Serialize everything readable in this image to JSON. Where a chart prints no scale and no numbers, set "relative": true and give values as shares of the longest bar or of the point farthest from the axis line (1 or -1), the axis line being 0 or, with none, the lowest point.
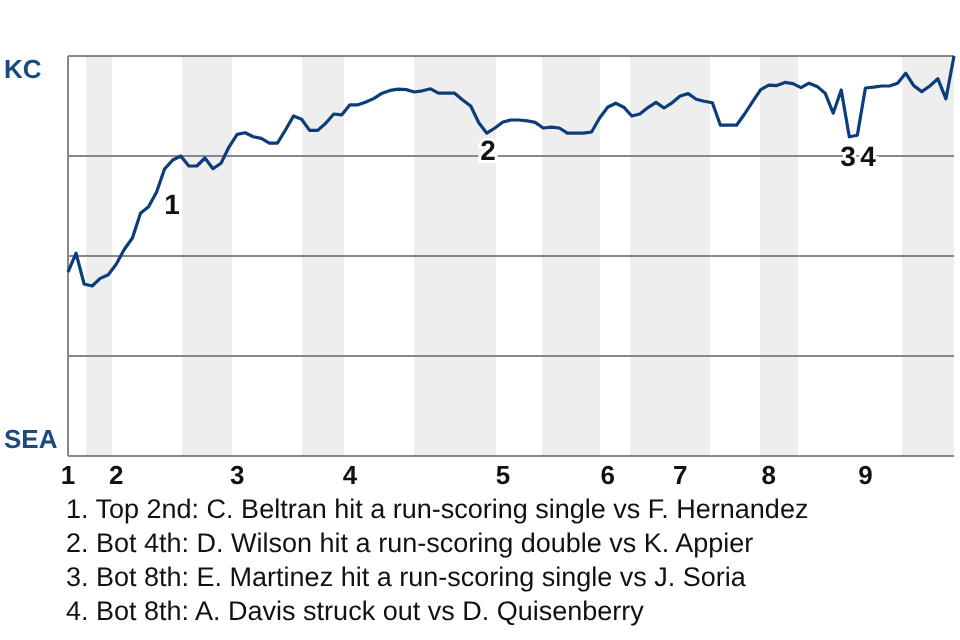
{
  "chart_data": {
    "type": "line",
    "relative": true,
    "categories": [
      "1",
      null,
      null,
      null,
      null,
      null,
      "2",
      null,
      null,
      null,
      null,
      null,
      null,
      null,
      null,
      null,
      null,
      null,
      null,
      null,
      null,
      "3",
      null,
      null,
      null,
      null,
      null,
      null,
      null,
      null,
      null,
      null,
      null,
      null,
      null,
      "4",
      null,
      null,
      null,
      null,
      null,
      null,
      null,
      null,
      null,
      null,
      null,
      null,
      null,
      null,
      null,
      null,
      null,
      null,
      "5",
      null,
      null,
      null,
      null,
      null,
      null,
      null,
      null,
      null,
      null,
      null,
      null,
      "6",
      null,
      null,
      null,
      null,
      null,
      null,
      null,
      null,
      "7",
      null,
      null,
      null,
      null,
      null,
      null,
      null,
      null,
      null,
      null,
      "8",
      null,
      null,
      null,
      null,
      null,
      null,
      null,
      null,
      null,
      null,
      null,
      "9",
      null,
      null,
      null,
      null,
      null,
      null,
      null,
      null,
      null,
      null,
      null
    ],
    "grid": "y",
    "marker": "none",
    "line_style": "solid",
    "series": [
      {
        "color": "#0b3d7a",
        "values": [
          0.46,
          0.507,
          0.43,
          0.425,
          0.444,
          0.453,
          0.48,
          0.517,
          0.545,
          0.607,
          0.623,
          0.66,
          0.718,
          0.74,
          0.75,
          0.725,
          0.725,
          0.745,
          0.718,
          0.732,
          0.773,
          0.804,
          0.808,
          0.798,
          0.794,
          0.782,
          0.782,
          0.815,
          0.85,
          0.842,
          0.814,
          0.814,
          0.832,
          0.855,
          0.853,
          0.878,
          0.878,
          0.885,
          0.894,
          0.907,
          0.914,
          0.917,
          0.916,
          0.91,
          0.913,
          0.918,
          0.907,
          0.907,
          0.907,
          0.89,
          0.875,
          0.833,
          0.807,
          0.82,
          0.835,
          0.84,
          0.84,
          0.838,
          0.834,
          0.82,
          0.822,
          0.82,
          0.807,
          0.807,
          0.807,
          0.81,
          0.845,
          0.872,
          0.882,
          0.872,
          0.85,
          0.855,
          0.871,
          0.884,
          0.87,
          0.883,
          0.9,
          0.906,
          0.892,
          0.887,
          0.883,
          0.827,
          0.827,
          0.827,
          0.855,
          0.886,
          0.916,
          0.927,
          0.926,
          0.934,
          0.931,
          0.921,
          0.932,
          0.924,
          0.907,
          0.857,
          0.915,
          0.798,
          0.802,
          0.92,
          0.922,
          0.925,
          0.925,
          0.932,
          0.957,
          0.926,
          0.911,
          0.925,
          0.943,
          0.893,
          1
        ]
      }
    ],
    "annotations": [
      "KC",
      "SEA",
      "1",
      "2",
      "3",
      "4",
      "1. Top 2nd: C. Beltran hit a run-scoring single vs F. Hernandez",
      "2. Bot 4th: D. Wilson hit a run-scoring double vs K. Appier",
      "3. Bot 8th: E. Martinez hit a run-scoring single vs J. Soria",
      "4. Bot 8th: A. Davis struck out vs D. Quisenberry"
    ]
  }
}
